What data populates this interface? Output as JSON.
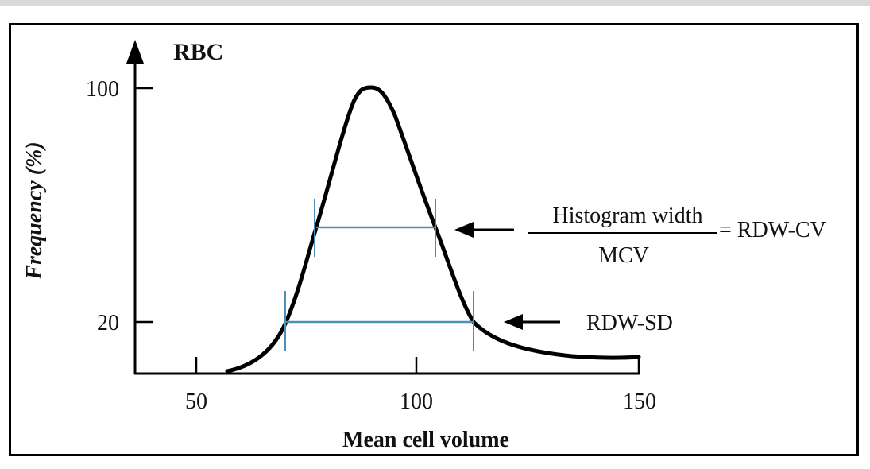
{
  "diagram": {
    "title": "RBC",
    "y_axis_label": "Frequency (%)",
    "x_axis_label": "Mean cell volume",
    "x_ticks": [
      {
        "label": "50",
        "value": 50
      },
      {
        "label": "100",
        "value": 100
      },
      {
        "label": "150",
        "value": 150
      }
    ],
    "y_ticks": [
      {
        "label": "100",
        "value": 100
      },
      {
        "label": "20",
        "value": 20
      }
    ],
    "formula": {
      "numerator": "Histogram width",
      "denominator": "MCV",
      "result": "= RDW-CV"
    },
    "rdw_sd_label": "RDW-SD",
    "colors": {
      "curve": "#000000",
      "width_lines": "#4a90b8",
      "frame": "#000000",
      "top_bar": "#d9d9dd"
    }
  }
}
